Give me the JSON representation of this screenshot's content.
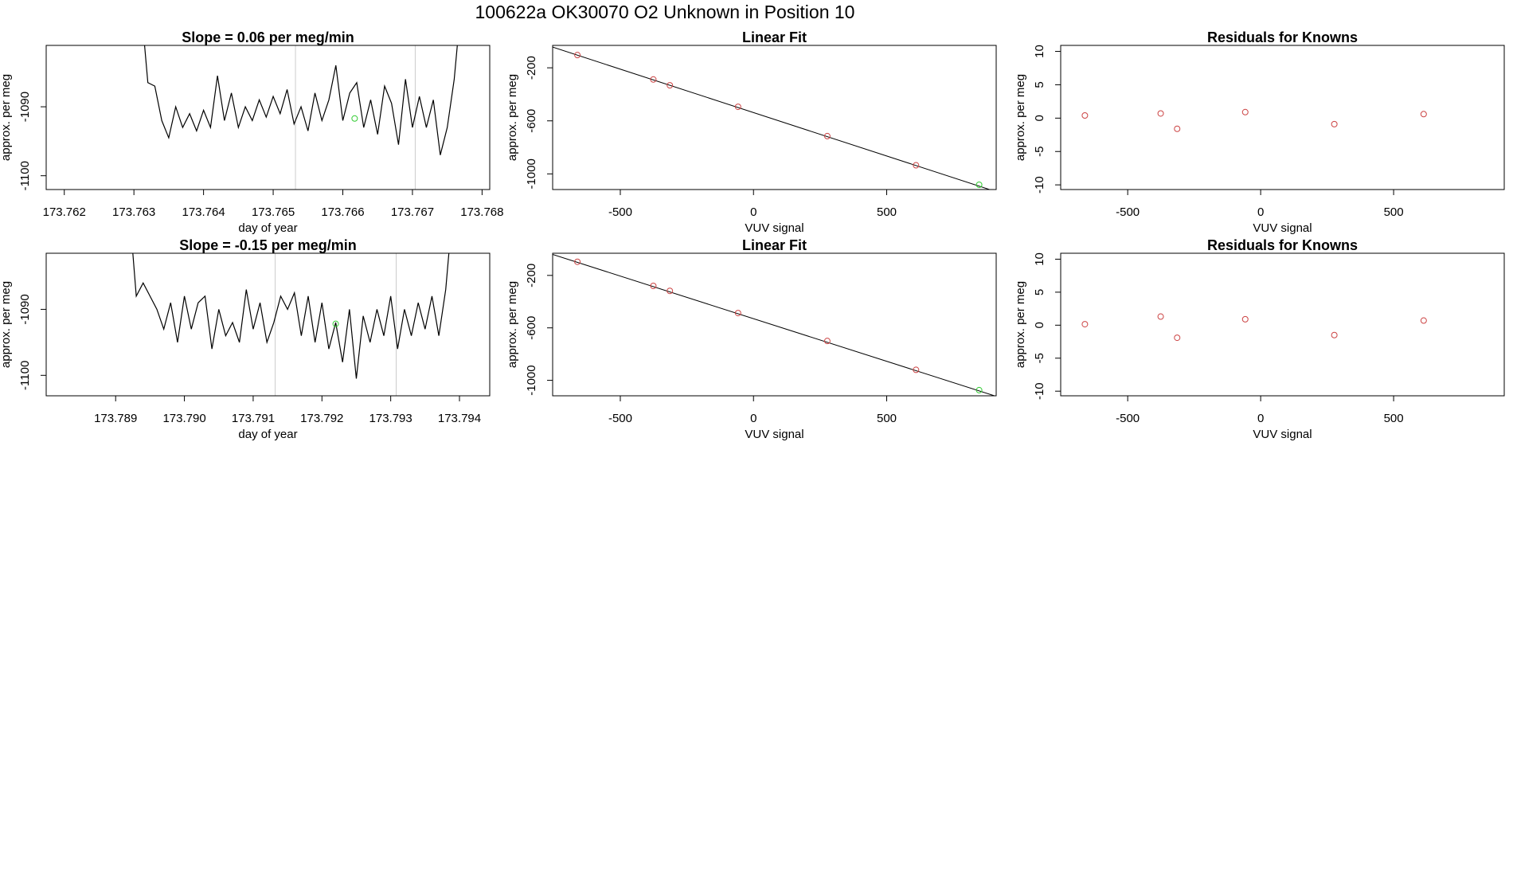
{
  "title": "100622a     OK30070   O2 Unknown in Position  10",
  "chart_data": [
    {
      "type": "line",
      "title": "Slope =  0.06  per meg/min",
      "xlabel": "day of year",
      "ylabel": "approx. per meg",
      "xlim": [
        173.76174,
        173.76811
      ],
      "ylim": [
        -1102.0,
        -1081.1
      ],
      "xticks": [
        173.762,
        173.763,
        173.764,
        173.765,
        173.766,
        173.767,
        173.768
      ],
      "yticks": [
        -1090,
        -1100
      ],
      "color": "#000000",
      "x": [
        173.7631,
        173.7632,
        173.7633,
        173.7634,
        173.7635,
        173.7636,
        173.7637,
        173.7638,
        173.7639,
        173.764,
        173.7641,
        173.7642,
        173.7643,
        173.7644,
        173.7645,
        173.7646,
        173.7647,
        173.7648,
        173.7649,
        173.765,
        173.7651,
        173.7652,
        173.7653,
        173.7654,
        173.7655,
        173.7656,
        173.7657,
        173.7658,
        173.7659,
        173.766,
        173.7661,
        173.7662,
        173.7663,
        173.7664,
        173.7665,
        173.7666,
        173.7667,
        173.7668,
        173.7669,
        173.767,
        173.7671,
        173.7672,
        173.7673,
        173.7674,
        173.7675,
        173.7676,
        173.7677
      ],
      "values": [
        -1075,
        -1086.5,
        -1087,
        -1092,
        -1094.5,
        -1090,
        -1093,
        -1091,
        -1093.5,
        -1090.5,
        -1093,
        -1085.5,
        -1092,
        -1088,
        -1093,
        -1090,
        -1092,
        -1089,
        -1091.5,
        -1088.5,
        -1091,
        -1087.5,
        -1092.5,
        -1090,
        -1093.5,
        -1088,
        -1092,
        -1089,
        -1084,
        -1092,
        -1088,
        -1086.5,
        -1093,
        -1089,
        -1094,
        -1087,
        -1089.5,
        -1095.5,
        -1086,
        -1093,
        -1088.5,
        -1093,
        -1089,
        -1097,
        -1093,
        -1086,
        -1075
      ],
      "vlines": {
        "x": [
          173.76532,
          173.76704
        ],
        "color": "#cccccc"
      },
      "highlight": {
        "x": 173.76617,
        "y": -1091.7,
        "color": "#33cc33"
      }
    },
    {
      "type": "scatter",
      "title": "Linear Fit",
      "xlabel": "VUV signal",
      "ylabel": "approx. per meg",
      "xlim": [
        -754,
        911
      ],
      "ylim": [
        -1118,
        -31
      ],
      "xticks": [
        -500,
        0,
        500
      ],
      "yticks": [
        -200,
        -600,
        -1000
      ],
      "color": "#cc4444",
      "x": [
        -661,
        -376,
        -314,
        -58,
        277,
        610
      ],
      "values": [
        -104,
        -288,
        -332,
        -494,
        -715,
        -935
      ],
      "fit": {
        "intercept": -537.6,
        "slope": -0.655,
        "color": "#000000"
      },
      "highlight": {
        "x": 847,
        "y": -1082,
        "color": "#33cc33"
      }
    },
    {
      "type": "scatter",
      "title": "Residuals for Knowns",
      "xlabel": "VUV signal",
      "ylabel": "approx. per meg",
      "xlim": [
        -752,
        916
      ],
      "ylim": [
        -10.7,
        10.9
      ],
      "xticks": [
        -500,
        0,
        500
      ],
      "yticks": [
        10,
        5,
        0,
        -5,
        -10
      ],
      "color": "#cc4444",
      "x": [
        -661,
        -376,
        -314,
        -58,
        277,
        613
      ],
      "values": [
        0.4,
        0.7,
        -1.6,
        0.9,
        -0.9,
        0.6
      ]
    },
    {
      "type": "line",
      "title": "Slope =  -0.15  per meg/min",
      "xlabel": "day of year",
      "ylabel": "approx. per meg",
      "xlim": [
        173.78799,
        173.79444
      ],
      "ylim": [
        -1103.1,
        -1081.5
      ],
      "xticks": [
        173.789,
        {
          "value": 173.79,
          "label": "173.790"
        },
        173.791,
        173.792,
        173.793,
        173.794
      ],
      "yticks": [
        -1090,
        -1100
      ],
      "color": "#000000",
      "x": [
        173.7892,
        173.7893,
        173.7894,
        173.7895,
        173.7896,
        173.7897,
        173.7898,
        173.7899,
        173.79,
        173.7901,
        173.7902,
        173.7903,
        173.7904,
        173.7905,
        173.7906,
        173.7907,
        173.7908,
        173.7909,
        173.791,
        173.7911,
        173.7912,
        173.7913,
        173.7914,
        173.7915,
        173.7916,
        173.7917,
        173.7918,
        173.7919,
        173.792,
        173.7921,
        173.7922,
        173.7923,
        173.7924,
        173.7925,
        173.7926,
        173.7927,
        173.7928,
        173.7929,
        173.793,
        173.7931,
        173.7932,
        173.7933,
        173.7934,
        173.7935,
        173.7936,
        173.7937,
        173.7938,
        173.7939
      ],
      "values": [
        -1075,
        -1088,
        -1086,
        -1088,
        -1090,
        -1093,
        -1089,
        -1095,
        -1088,
        -1093,
        -1089,
        -1088,
        -1096,
        -1090,
        -1094,
        -1092,
        -1095,
        -1087,
        -1093,
        -1089,
        -1095,
        -1092,
        -1088,
        -1090,
        -1087.5,
        -1094,
        -1088,
        -1095,
        -1089,
        -1096,
        -1092,
        -1098,
        -1090,
        -1100.5,
        -1091,
        -1095,
        -1090,
        -1094,
        -1088,
        -1096,
        -1090,
        -1094,
        -1089,
        -1093,
        -1088,
        -1094,
        -1087,
        -1075
      ],
      "vlines": {
        "x": [
          173.79132,
          173.79308
        ],
        "color": "#cccccc"
      },
      "highlight": {
        "x": 173.7922,
        "y": -1092.2,
        "color": "#33cc33"
      }
    },
    {
      "type": "scatter",
      "title": "Linear Fit",
      "xlabel": "VUV signal",
      "ylabel": "approx. per meg",
      "xlim": [
        -754,
        911
      ],
      "ylim": [
        -1118,
        -31
      ],
      "xticks": [
        -500,
        0,
        500
      ],
      "yticks": [
        -200,
        -600,
        -1000
      ],
      "color": "#cc4444",
      "x": [
        -661,
        -376,
        -314,
        -58,
        277,
        610
      ],
      "values": [
        -96,
        -280,
        -318,
        -487,
        -700,
        -920
      ],
      "fit": {
        "intercept": -530,
        "slope": -0.65,
        "color": "#000000"
      },
      "highlight": {
        "x": 847,
        "y": -1075,
        "color": "#33cc33"
      }
    },
    {
      "type": "scatter",
      "title": "Residuals for Knowns",
      "xlabel": "VUV signal",
      "ylabel": "approx. per meg",
      "xlim": [
        -752,
        916
      ],
      "ylim": [
        -10.7,
        10.9
      ],
      "xticks": [
        -500,
        0,
        500
      ],
      "yticks": [
        10,
        5,
        0,
        -5,
        -10
      ],
      "color": "#cc4444",
      "x": [
        -661,
        -376,
        -314,
        -58,
        277,
        613
      ],
      "values": [
        0.15,
        1.3,
        -1.9,
        0.9,
        -1.5,
        0.7
      ]
    }
  ]
}
